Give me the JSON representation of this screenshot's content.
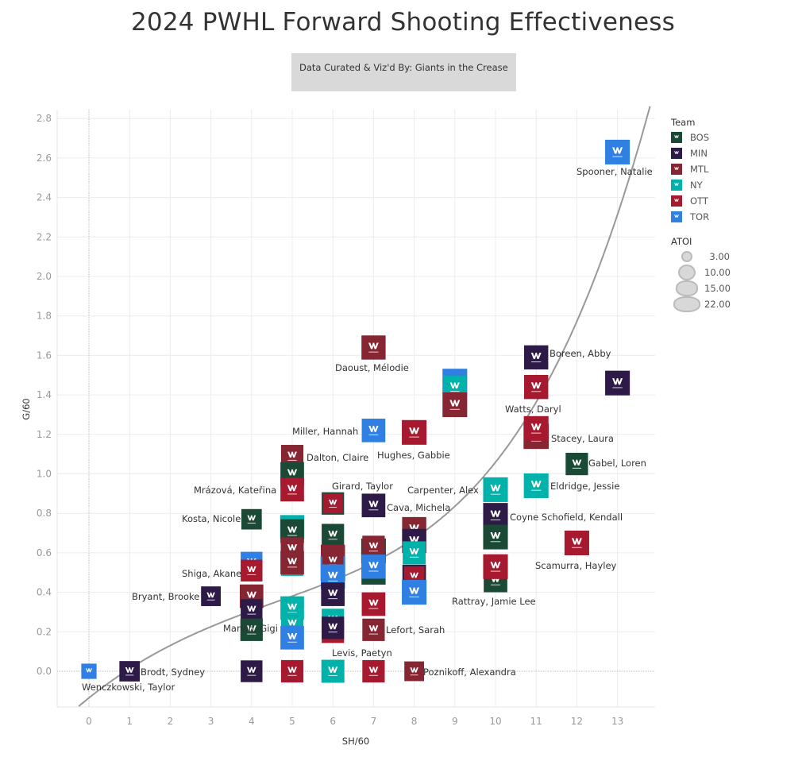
{
  "title": "2024 PWHL Forward Shooting Effectiveness",
  "credit": "Data Curated & Viz'd By: Giants in the Crease",
  "legend": {
    "team_title": "Team",
    "teams": [
      {
        "code": "BOS",
        "color": "#1a4a35"
      },
      {
        "code": "MIN",
        "color": "#2e1a47"
      },
      {
        "code": "MTL",
        "color": "#862633"
      },
      {
        "code": "NY",
        "color": "#00b2a9"
      },
      {
        "code": "OTT",
        "color": "#a6192e"
      },
      {
        "code": "TOR",
        "color": "#307fe2"
      }
    ],
    "size_title": "ATOI",
    "sizes": [
      "3.00",
      "10.00",
      "15.00",
      "22.00"
    ]
  },
  "chart_data": {
    "type": "scatter",
    "title": "2024 PWHL Forward Shooting Effectiveness",
    "xlabel": "SH/60",
    "ylabel": "G/60",
    "xlim": [
      -0.75,
      13.9
    ],
    "ylim": [
      -0.18,
      2.85
    ],
    "xticks": [
      "0",
      "1",
      "2",
      "3",
      "4",
      "5",
      "6",
      "7",
      "8",
      "9",
      "10",
      "11",
      "12",
      "13"
    ],
    "yticks": [
      "0.0",
      "0.2",
      "0.4",
      "0.6",
      "0.8",
      "1.0",
      "1.2",
      "1.4",
      "1.6",
      "1.8",
      "2.0",
      "2.2",
      "2.4",
      "2.6",
      "2.8"
    ],
    "grid": true,
    "legend_position": "right",
    "trend_line": "exponential",
    "points": [
      {
        "name": "Spooner, Natalie",
        "team": "TOR",
        "x": 13.0,
        "y": 2.63,
        "atoi": 17
      },
      {
        "name": "Daoust, Mélodie",
        "team": "MTL",
        "x": 7.0,
        "y": 1.64,
        "atoi": 16
      },
      {
        "name": "Boreen, Abby",
        "team": "MIN",
        "x": 11.0,
        "y": 1.59,
        "atoi": 16
      },
      {
        "name": "",
        "team": "MIN",
        "x": 13.0,
        "y": 1.46,
        "atoi": 17
      },
      {
        "name": "",
        "team": "TOR",
        "x": 9.0,
        "y": 1.47,
        "atoi": 17
      },
      {
        "name": "",
        "team": "NY",
        "x": 9.0,
        "y": 1.44,
        "atoi": 14
      },
      {
        "name": "",
        "team": "MTL",
        "x": 9.0,
        "y": 1.35,
        "atoi": 17
      },
      {
        "name": "Watts, Daryl",
        "team": "OTT",
        "x": 11.0,
        "y": 1.44,
        "atoi": 16
      },
      {
        "name": "Miller, Hannah",
        "team": "TOR",
        "x": 7.0,
        "y": 1.22,
        "atoi": 15
      },
      {
        "name": "Hughes, Gabbie",
        "team": "OTT",
        "x": 8.0,
        "y": 1.21,
        "atoi": 17
      },
      {
        "name": "Stacey, Laura",
        "team": "MTL",
        "x": 11.0,
        "y": 1.19,
        "atoi": 18
      },
      {
        "name": "",
        "team": "OTT",
        "x": 11.0,
        "y": 1.23,
        "atoi": 17
      },
      {
        "name": "Gabel, Loren",
        "team": "BOS",
        "x": 12.0,
        "y": 1.05,
        "atoi": 13
      },
      {
        "name": "Dalton, Claire",
        "team": "MTL",
        "x": 5.0,
        "y": 1.09,
        "atoi": 13
      },
      {
        "name": "",
        "team": "BOS",
        "x": 5.0,
        "y": 1.0,
        "atoi": 15
      },
      {
        "name": "Mrázová, Kateřina",
        "team": "OTT",
        "x": 5.0,
        "y": 0.92,
        "atoi": 15
      },
      {
        "name": "Girard, Taylor",
        "team": "BOS",
        "x": 6.0,
        "y": 0.85,
        "atoi": 13
      },
      {
        "name": "",
        "team": "OTT",
        "x": 6.0,
        "y": 0.85,
        "atoi": 9
      },
      {
        "name": "Cava, Michela",
        "team": "MIN",
        "x": 7.0,
        "y": 0.84,
        "atoi": 15
      },
      {
        "name": "Carpenter, Alex",
        "team": "NY",
        "x": 10.0,
        "y": 0.92,
        "atoi": 17
      },
      {
        "name": "Eldridge, Jessie",
        "team": "NY",
        "x": 11.0,
        "y": 0.94,
        "atoi": 17
      },
      {
        "name": "Coyne Schofield, Kendall",
        "team": "MIN",
        "x": 10.0,
        "y": 0.79,
        "atoi": 17
      },
      {
        "name": "Kosta, Nicole",
        "team": "BOS",
        "x": 4.0,
        "y": 0.77,
        "atoi": 10
      },
      {
        "name": "",
        "team": "NY",
        "x": 5.0,
        "y": 0.73,
        "atoi": 16
      },
      {
        "name": "",
        "team": "BOS",
        "x": 5.0,
        "y": 0.71,
        "atoi": 15
      },
      {
        "name": "",
        "team": "BOS",
        "x": 6.0,
        "y": 0.69,
        "atoi": 13
      },
      {
        "name": "",
        "team": "BOS",
        "x": 10.0,
        "y": 0.68,
        "atoi": 17
      },
      {
        "name": "",
        "team": "MTL",
        "x": 8.0,
        "y": 0.72,
        "atoi": 16
      },
      {
        "name": "",
        "team": "MIN",
        "x": 8.0,
        "y": 0.66,
        "atoi": 16
      },
      {
        "name": "",
        "team": "BOS",
        "x": 7.0,
        "y": 0.61,
        "atoi": 17
      },
      {
        "name": "",
        "team": "MTL",
        "x": 7.0,
        "y": 0.63,
        "atoi": 13
      },
      {
        "name": "",
        "team": "NY",
        "x": 8.0,
        "y": 0.6,
        "atoi": 14
      },
      {
        "name": "Scamurra, Hayley",
        "team": "OTT",
        "x": 12.0,
        "y": 0.65,
        "atoi": 17
      },
      {
        "name": "",
        "team": "MTL",
        "x": 5.0,
        "y": 0.62,
        "atoi": 14
      },
      {
        "name": "",
        "team": "NY",
        "x": 5.0,
        "y": 0.54,
        "atoi": 13
      },
      {
        "name": "",
        "team": "MTL",
        "x": 5.0,
        "y": 0.55,
        "atoi": 15
      },
      {
        "name": "",
        "team": "MIN",
        "x": 6.0,
        "y": 0.57,
        "atoi": 16
      },
      {
        "name": "",
        "team": "MTL",
        "x": 6.0,
        "y": 0.58,
        "atoi": 16
      },
      {
        "name": "",
        "team": "TOR",
        "x": 6.0,
        "y": 0.52,
        "atoi": 17
      },
      {
        "name": "",
        "team": "MTL",
        "x": 6.0,
        "y": 0.56,
        "atoi": 11
      },
      {
        "name": "",
        "team": "TOR",
        "x": 6.0,
        "y": 0.48,
        "atoi": 16
      },
      {
        "name": "",
        "team": "BOS",
        "x": 7.0,
        "y": 0.5,
        "atoi": 16
      },
      {
        "name": "",
        "team": "TOR",
        "x": 7.0,
        "y": 0.53,
        "atoi": 16
      },
      {
        "name": "",
        "team": "MIN",
        "x": 8.0,
        "y": 0.48,
        "atoi": 15
      },
      {
        "name": "",
        "team": "OTT",
        "x": 8.0,
        "y": 0.48,
        "atoi": 10
      },
      {
        "name": "",
        "team": "TOR",
        "x": 8.0,
        "y": 0.4,
        "atoi": 17
      },
      {
        "name": "",
        "team": "BOS",
        "x": 10.0,
        "y": 0.46,
        "atoi": 15
      },
      {
        "name": "",
        "team": "OTT",
        "x": 10.0,
        "y": 0.53,
        "atoi": 17
      },
      {
        "name": "Rattray, Jamie Lee",
        "team": "",
        "x": 10.0,
        "y": 0.46,
        "atoi": 0
      },
      {
        "name": "",
        "team": "TOR",
        "x": 4.0,
        "y": 0.55,
        "atoi": 12
      },
      {
        "name": "Shiga, Akane",
        "team": "OTT",
        "x": 4.0,
        "y": 0.51,
        "atoi": 12
      },
      {
        "name": "Bryant, Brooke",
        "team": "MIN",
        "x": 3.0,
        "y": 0.38,
        "atoi": 9
      },
      {
        "name": "",
        "team": "MTL",
        "x": 4.0,
        "y": 0.38,
        "atoi": 15
      },
      {
        "name": "",
        "team": "MIN",
        "x": 4.0,
        "y": 0.31,
        "atoi": 12
      },
      {
        "name": "",
        "team": "BOS",
        "x": 4.0,
        "y": 0.21,
        "atoi": 13
      },
      {
        "name": "",
        "team": "MIN",
        "x": 6.0,
        "y": 0.39,
        "atoi": 15
      },
      {
        "name": "",
        "team": "OTT",
        "x": 7.0,
        "y": 0.34,
        "atoi": 15
      },
      {
        "name": "",
        "team": "NY",
        "x": 5.0,
        "y": 0.32,
        "atoi": 15
      },
      {
        "name": "",
        "team": "NY",
        "x": 5.0,
        "y": 0.24,
        "atoi": 13
      },
      {
        "name": "Marvin, Gigi",
        "team": "TOR",
        "x": 5.0,
        "y": 0.17,
        "atoi": 15
      },
      {
        "name": "",
        "team": "NY",
        "x": 6.0,
        "y": 0.26,
        "atoi": 13
      },
      {
        "name": "",
        "team": "OTT",
        "x": 6.0,
        "y": 0.2,
        "atoi": 13
      },
      {
        "name": "Levis, Paetyn",
        "team": "MIN",
        "x": 6.0,
        "y": 0.22,
        "atoi": 13
      },
      {
        "name": "Lefort, Sarah",
        "team": "MTL",
        "x": 7.0,
        "y": 0.21,
        "atoi": 13
      },
      {
        "name": "Wenczkowski, Taylor",
        "team": "TOR",
        "x": 0.0,
        "y": 0.0,
        "atoi": 4
      },
      {
        "name": "Brodt, Sydney",
        "team": "MIN",
        "x": 1.0,
        "y": 0.0,
        "atoi": 10
      },
      {
        "name": "",
        "team": "MIN",
        "x": 4.0,
        "y": 0.0,
        "atoi": 12
      },
      {
        "name": "",
        "team": "OTT",
        "x": 5.0,
        "y": 0.0,
        "atoi": 13
      },
      {
        "name": "",
        "team": "NY",
        "x": 6.0,
        "y": 0.0,
        "atoi": 14
      },
      {
        "name": "",
        "team": "OTT",
        "x": 7.0,
        "y": 0.0,
        "atoi": 13
      },
      {
        "name": "Poznikoff, Alexandra",
        "team": "MTL",
        "x": 8.0,
        "y": 0.0,
        "atoi": 9
      }
    ]
  }
}
